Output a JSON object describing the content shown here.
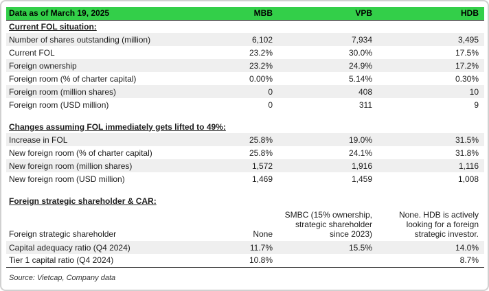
{
  "table": {
    "title": "Data as of March 19, 2025",
    "columns": [
      "MBB",
      "VPB",
      "HDB"
    ],
    "rows": [
      {
        "type": "section",
        "label": "Current FOL situation:"
      },
      {
        "type": "data",
        "shaded": true,
        "label": "Number of shares outstanding (million)",
        "values": [
          "6,102",
          "7,934",
          "3,495"
        ]
      },
      {
        "type": "data",
        "shaded": false,
        "label": "Current FOL",
        "values": [
          "23.2%",
          "30.0%",
          "17.5%"
        ]
      },
      {
        "type": "data",
        "shaded": true,
        "label": "Foreign ownership",
        "values": [
          "23.2%",
          "24.9%",
          "17.2%"
        ]
      },
      {
        "type": "data",
        "shaded": false,
        "label": "Foreign room (% of charter capital)",
        "values": [
          "0.00%",
          "5.14%",
          "0.30%"
        ]
      },
      {
        "type": "data",
        "shaded": true,
        "label": "Foreign room (million shares)",
        "values": [
          "0",
          "408",
          "10"
        ]
      },
      {
        "type": "data",
        "shaded": false,
        "label": "Foreign room (USD million)",
        "values": [
          "0",
          "311",
          "9"
        ]
      },
      {
        "type": "spacer"
      },
      {
        "type": "section",
        "label": "Changes assuming FOL immediately gets lifted to 49%:"
      },
      {
        "type": "data",
        "shaded": true,
        "label": "Increase in FOL",
        "values": [
          "25.8%",
          "19.0%",
          "31.5%"
        ]
      },
      {
        "type": "data",
        "shaded": false,
        "label": "New foreign room (% of charter capital)",
        "values": [
          "25.8%",
          "24.1%",
          "31.8%"
        ]
      },
      {
        "type": "data",
        "shaded": true,
        "label": "New foreign room (million shares)",
        "values": [
          "1,572",
          "1,916",
          "1,116"
        ]
      },
      {
        "type": "data",
        "shaded": false,
        "label": "New foreign room (USD million)",
        "values": [
          "1,469",
          "1,459",
          "1,008"
        ]
      },
      {
        "type": "spacer"
      },
      {
        "type": "section",
        "label": "Foreign strategic shareholder & CAR:"
      },
      {
        "type": "data",
        "shaded": false,
        "tall": true,
        "label": "Foreign strategic shareholder",
        "values": [
          "None",
          "SMBC (15% ownership, strategic shareholder since 2023)",
          "None. HDB is actively looking for a foreign strategic investor."
        ]
      },
      {
        "type": "data",
        "shaded": true,
        "label": "Capital adequacy ratio (Q4 2024)",
        "values": [
          "11.7%",
          "15.5%",
          "14.0%"
        ]
      },
      {
        "type": "data",
        "shaded": false,
        "label": "Tier 1 capital ratio (Q4 2024)",
        "values": [
          "10.8%",
          "",
          "8.7%"
        ]
      }
    ]
  },
  "footer": {
    "source": "Source: Vietcap, Company data"
  },
  "colors": {
    "header_green": "#33cf49",
    "row_shade": "#efefef",
    "border_dark": "#1a1a1a",
    "frame_border": "#d0d0d0",
    "text": "#1c1c1c"
  }
}
